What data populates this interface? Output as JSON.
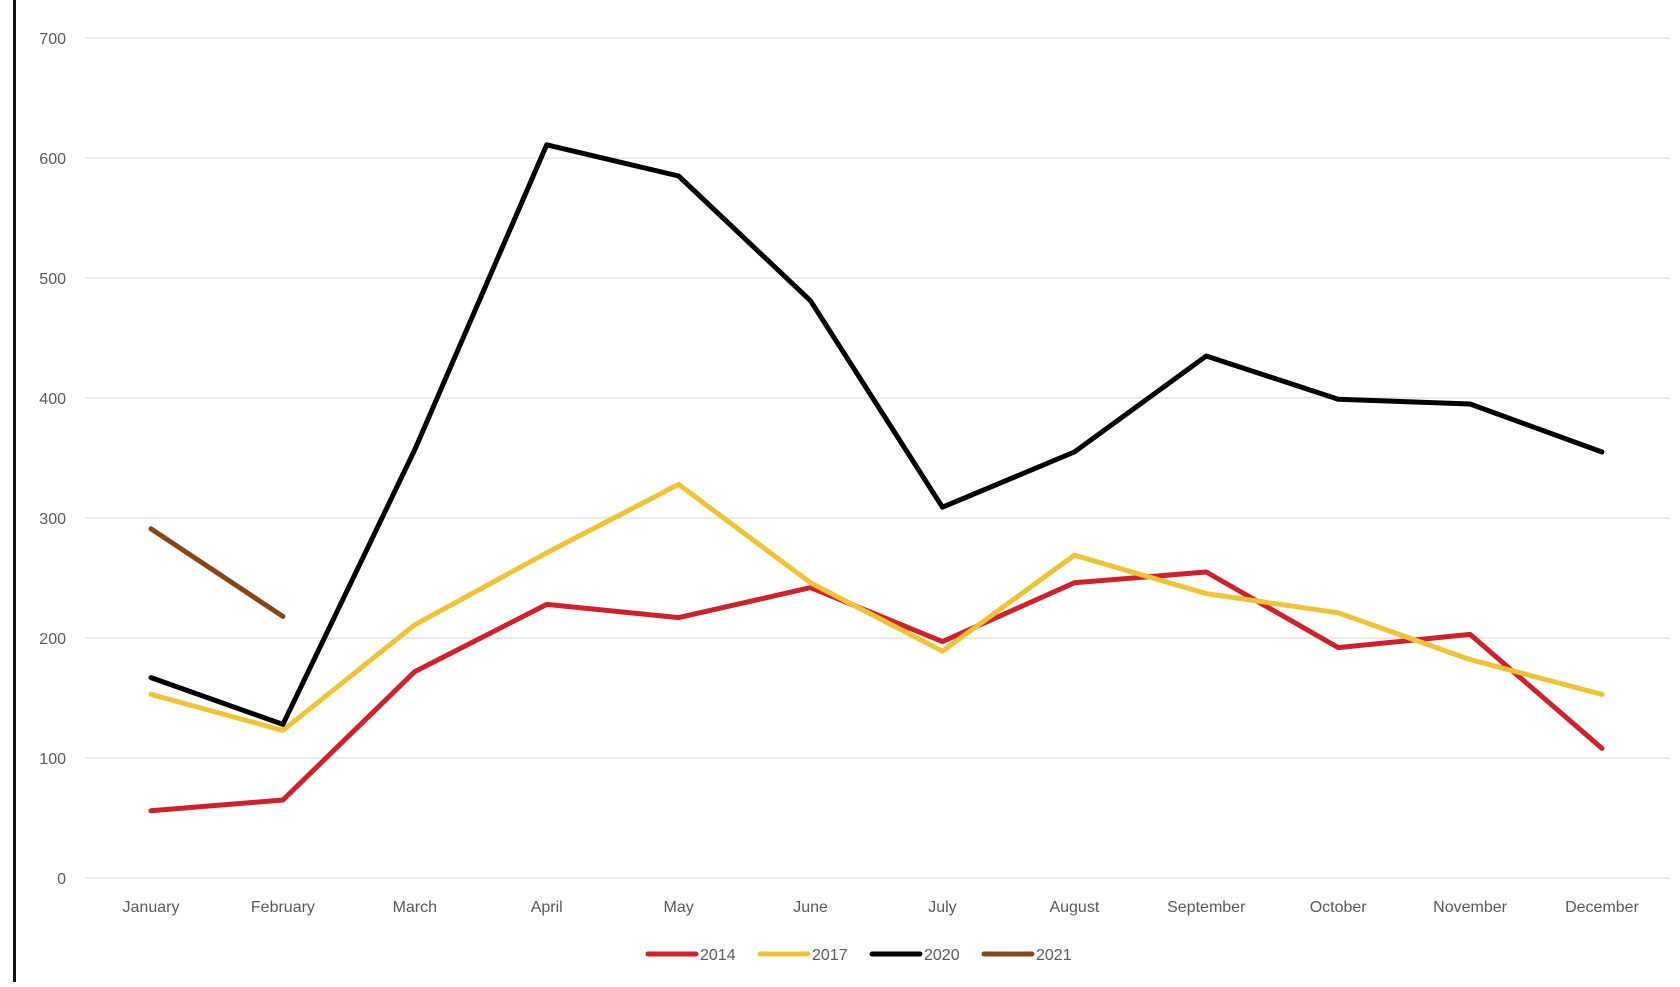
{
  "chart_data": {
    "type": "line",
    "title": "",
    "xlabel": "",
    "ylabel": "",
    "categories": [
      "January",
      "February",
      "March",
      "April",
      "May",
      "June",
      "July",
      "August",
      "September",
      "October",
      "November",
      "December"
    ],
    "ylim": [
      0,
      700
    ],
    "yticks": [
      0,
      100,
      200,
      300,
      400,
      500,
      600,
      700
    ],
    "grid": true,
    "legend_position": "bottom",
    "series": [
      {
        "name": "2014",
        "color": "#d2202a",
        "values": [
          56,
          65,
          172,
          228,
          217,
          242,
          197,
          246,
          255,
          192,
          203,
          108
        ]
      },
      {
        "name": "2017",
        "color": "#f0c234",
        "values": [
          153,
          123,
          211,
          271,
          328,
          246,
          189,
          269,
          237,
          221,
          182,
          153
        ]
      },
      {
        "name": "2020",
        "color": "#000000",
        "values": [
          167,
          128,
          357,
          611,
          585,
          481,
          309,
          355,
          435,
          399,
          395,
          355
        ]
      },
      {
        "name": "2021",
        "color": "#8b4513",
        "values": [
          291,
          218,
          null,
          null,
          null,
          null,
          null,
          null,
          null,
          null,
          null,
          null
        ]
      }
    ]
  }
}
